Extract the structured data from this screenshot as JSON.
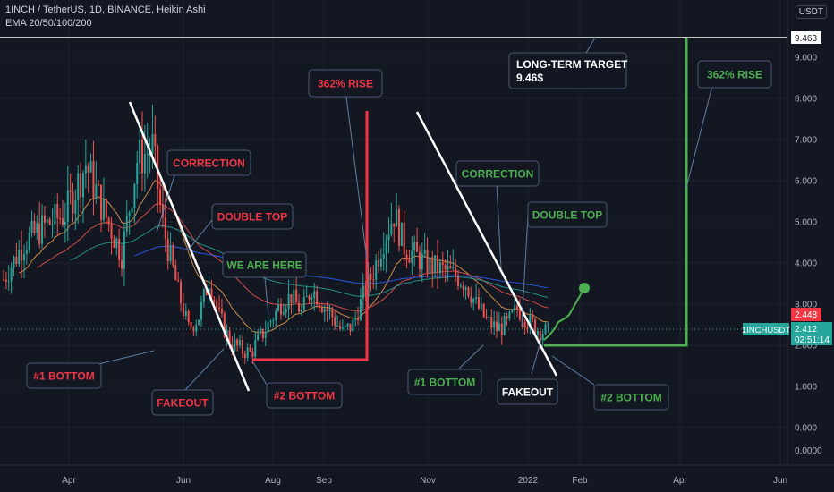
{
  "header": {
    "symbol_line": "1INCH / TetherUS, 1D, BINANCE, Heikin Ashi",
    "indicator_line": "EMA 20/50/100/200"
  },
  "currency": "USDT",
  "colors": {
    "bull": "#26a69a",
    "bear": "#ef5350",
    "red_label": "#f23645",
    "green_label": "#4caf50",
    "red_line": "#f23645",
    "green_line": "#4caf50",
    "trend_line": "#ffffff",
    "target_line": "#ffffff"
  },
  "chart_data": {
    "type": "candlestick",
    "ylim": [
      0,
      9.463
    ],
    "y_ticks": [
      "0.000",
      "1.000",
      "2.000",
      "3.000",
      "4.000",
      "5.000",
      "6.000",
      "7.000",
      "8.000",
      "9.000"
    ],
    "x_ticks": [
      "Apr",
      "Jun",
      "Aug",
      "Sep",
      "Nov",
      "2022",
      "Feb",
      "Apr",
      "Jun"
    ],
    "price_labels": {
      "target": "9.463",
      "close": "2.448",
      "last": "2.412",
      "ticker": "1INCHUSDT",
      "countdown": "02:51:14",
      "bottom_value": "0.0000"
    },
    "price_path": [
      [
        0,
        3.6
      ],
      [
        8,
        4.5
      ],
      [
        16,
        4.9
      ],
      [
        24,
        5.2
      ],
      [
        32,
        6.4
      ],
      [
        40,
        5.1
      ],
      [
        46,
        4.2
      ],
      [
        52,
        6.5
      ],
      [
        58,
        6.8
      ],
      [
        62,
        4.9
      ],
      [
        68,
        3.3
      ],
      [
        72,
        2.4
      ],
      [
        76,
        2.7
      ],
      [
        80,
        3.6
      ],
      [
        84,
        2.7
      ],
      [
        88,
        2.1
      ],
      [
        92,
        1.9
      ],
      [
        96,
        1.8
      ],
      [
        100,
        2.2
      ],
      [
        104,
        2.6
      ],
      [
        108,
        3.0
      ],
      [
        112,
        3.2
      ],
      [
        116,
        2.8
      ],
      [
        120,
        3.4
      ],
      [
        124,
        3.0
      ],
      [
        128,
        2.7
      ],
      [
        132,
        2.3
      ],
      [
        136,
        2.5
      ],
      [
        140,
        3.2
      ],
      [
        144,
        3.8
      ],
      [
        148,
        4.6
      ],
      [
        152,
        5.2
      ],
      [
        156,
        4.4
      ],
      [
        160,
        4.2
      ],
      [
        164,
        4.0
      ],
      [
        168,
        3.9
      ],
      [
        172,
        3.8
      ],
      [
        176,
        3.7
      ],
      [
        180,
        3.5
      ],
      [
        184,
        3.0
      ],
      [
        188,
        2.6
      ],
      [
        192,
        2.4
      ],
      [
        196,
        2.5
      ],
      [
        200,
        2.9
      ],
      [
        204,
        2.6
      ],
      [
        208,
        2.4
      ],
      [
        212,
        2.3
      ]
    ],
    "ema_lines": [
      {
        "name": "EMA 20",
        "color": "#f0a050"
      },
      {
        "name": "EMA 50",
        "color": "#ef5350"
      },
      {
        "name": "EMA 100",
        "color": "#26a69a"
      },
      {
        "name": "EMA 200",
        "color": "#2962ff"
      }
    ]
  },
  "annotations": [
    {
      "text": "CORRECTION",
      "color": "red"
    },
    {
      "text": "DOUBLE TOP",
      "color": "red"
    },
    {
      "text": "WE ARE HERE",
      "color": "green"
    },
    {
      "text": "362% RISE",
      "color": "red"
    },
    {
      "text": "#1 BOTTOM",
      "color": "red"
    },
    {
      "text": "FAKEOUT",
      "color": "red"
    },
    {
      "text": "#2 BOTTOM",
      "color": "red"
    },
    {
      "text": "CORRECTION",
      "color": "green"
    },
    {
      "text": "DOUBLE TOP",
      "color": "green"
    },
    {
      "text": "#1 BOTTOM",
      "color": "green"
    },
    {
      "text": "FAKEOUT",
      "color": "white"
    },
    {
      "text": "#2 BOTTOM",
      "color": "green"
    },
    {
      "text": "LONG-TERM TARGET",
      "color": "white"
    },
    {
      "text": "9.46$",
      "color": "white"
    },
    {
      "text": "362% RISE",
      "color": "green"
    }
  ]
}
